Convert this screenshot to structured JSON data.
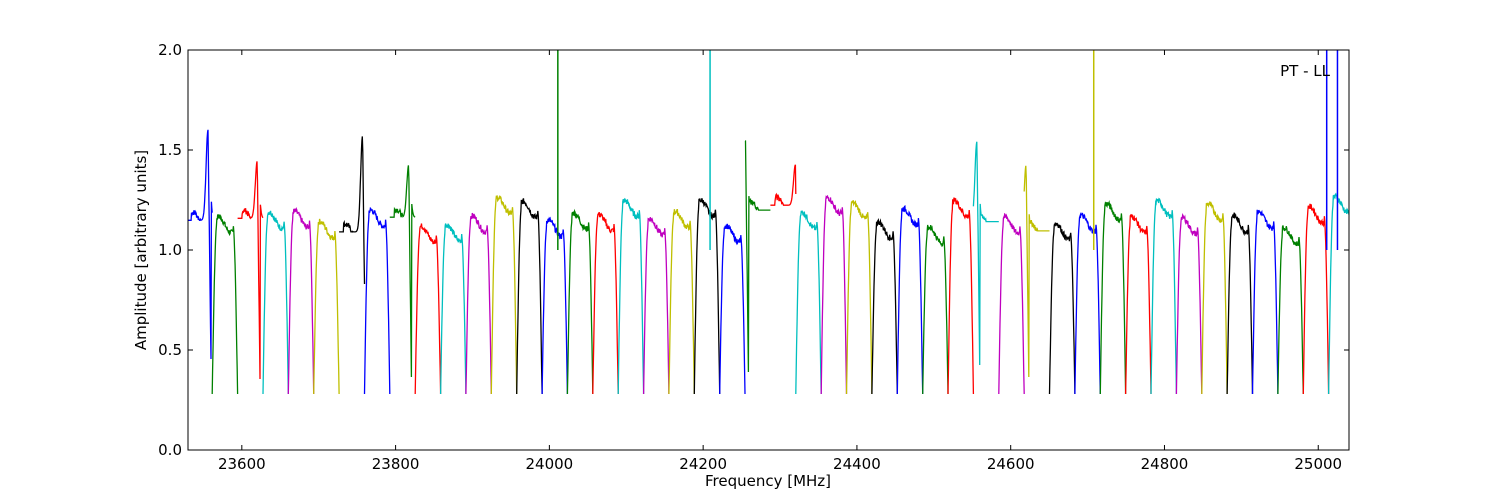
{
  "chart_data": {
    "type": "line",
    "title": "",
    "xlabel": "Frequency [MHz]",
    "ylabel": "Amplitude [arbitrary units]",
    "annotation": "PT - LL",
    "annotation_position": "top-right",
    "xlim": [
      23530,
      25040
    ],
    "ylim": [
      0.0,
      2.0
    ],
    "xticks": [
      23600,
      23800,
      24000,
      24200,
      24400,
      24600,
      24800,
      25000
    ],
    "yticks": [
      0.0,
      0.5,
      1.0,
      1.5,
      2.0
    ],
    "xtick_labels": [
      "23600",
      "23800",
      "24000",
      "24200",
      "24400",
      "24600",
      "24800",
      "25000"
    ],
    "ytick_labels": [
      "0.0",
      "0.5",
      "1.0",
      "1.5",
      "2.0"
    ],
    "grid": false,
    "legend": "none",
    "color_cycle": [
      "#0000ff",
      "#008000",
      "#ff0000",
      "#00bfbf",
      "#bf00bf",
      "#bfbf00",
      "#000000"
    ],
    "channel_spacing_mhz": 33,
    "channel_rise_mhz": 6,
    "channel_first_center_mhz": 23545,
    "channel_count": 46,
    "baseline_amplitude": 1.15,
    "trough_amplitude": 0.28,
    "peaks": [
      {
        "x": 23556,
        "y": 1.61
      },
      {
        "x": 23620,
        "y": 1.45
      },
      {
        "x": 23757,
        "y": 1.58
      },
      {
        "x": 23817,
        "y": 1.43
      },
      {
        "x": 24255,
        "y": 1.56
      },
      {
        "x": 24320,
        "y": 1.43
      },
      {
        "x": 24556,
        "y": 1.55
      },
      {
        "x": 24620,
        "y": 1.43
      }
    ],
    "spikes": [
      {
        "x": 24011,
        "y": 2.0,
        "color": "#008000"
      },
      {
        "x": 24209,
        "y": 2.0,
        "color": "#00bfbf"
      },
      {
        "x": 24708,
        "y": 2.0,
        "color": "#bfbf00"
      },
      {
        "x": 25011,
        "y": 2.0,
        "color": "#0000ff"
      },
      {
        "x": 25025,
        "y": 2.0,
        "color": "#0000ff"
      }
    ]
  }
}
